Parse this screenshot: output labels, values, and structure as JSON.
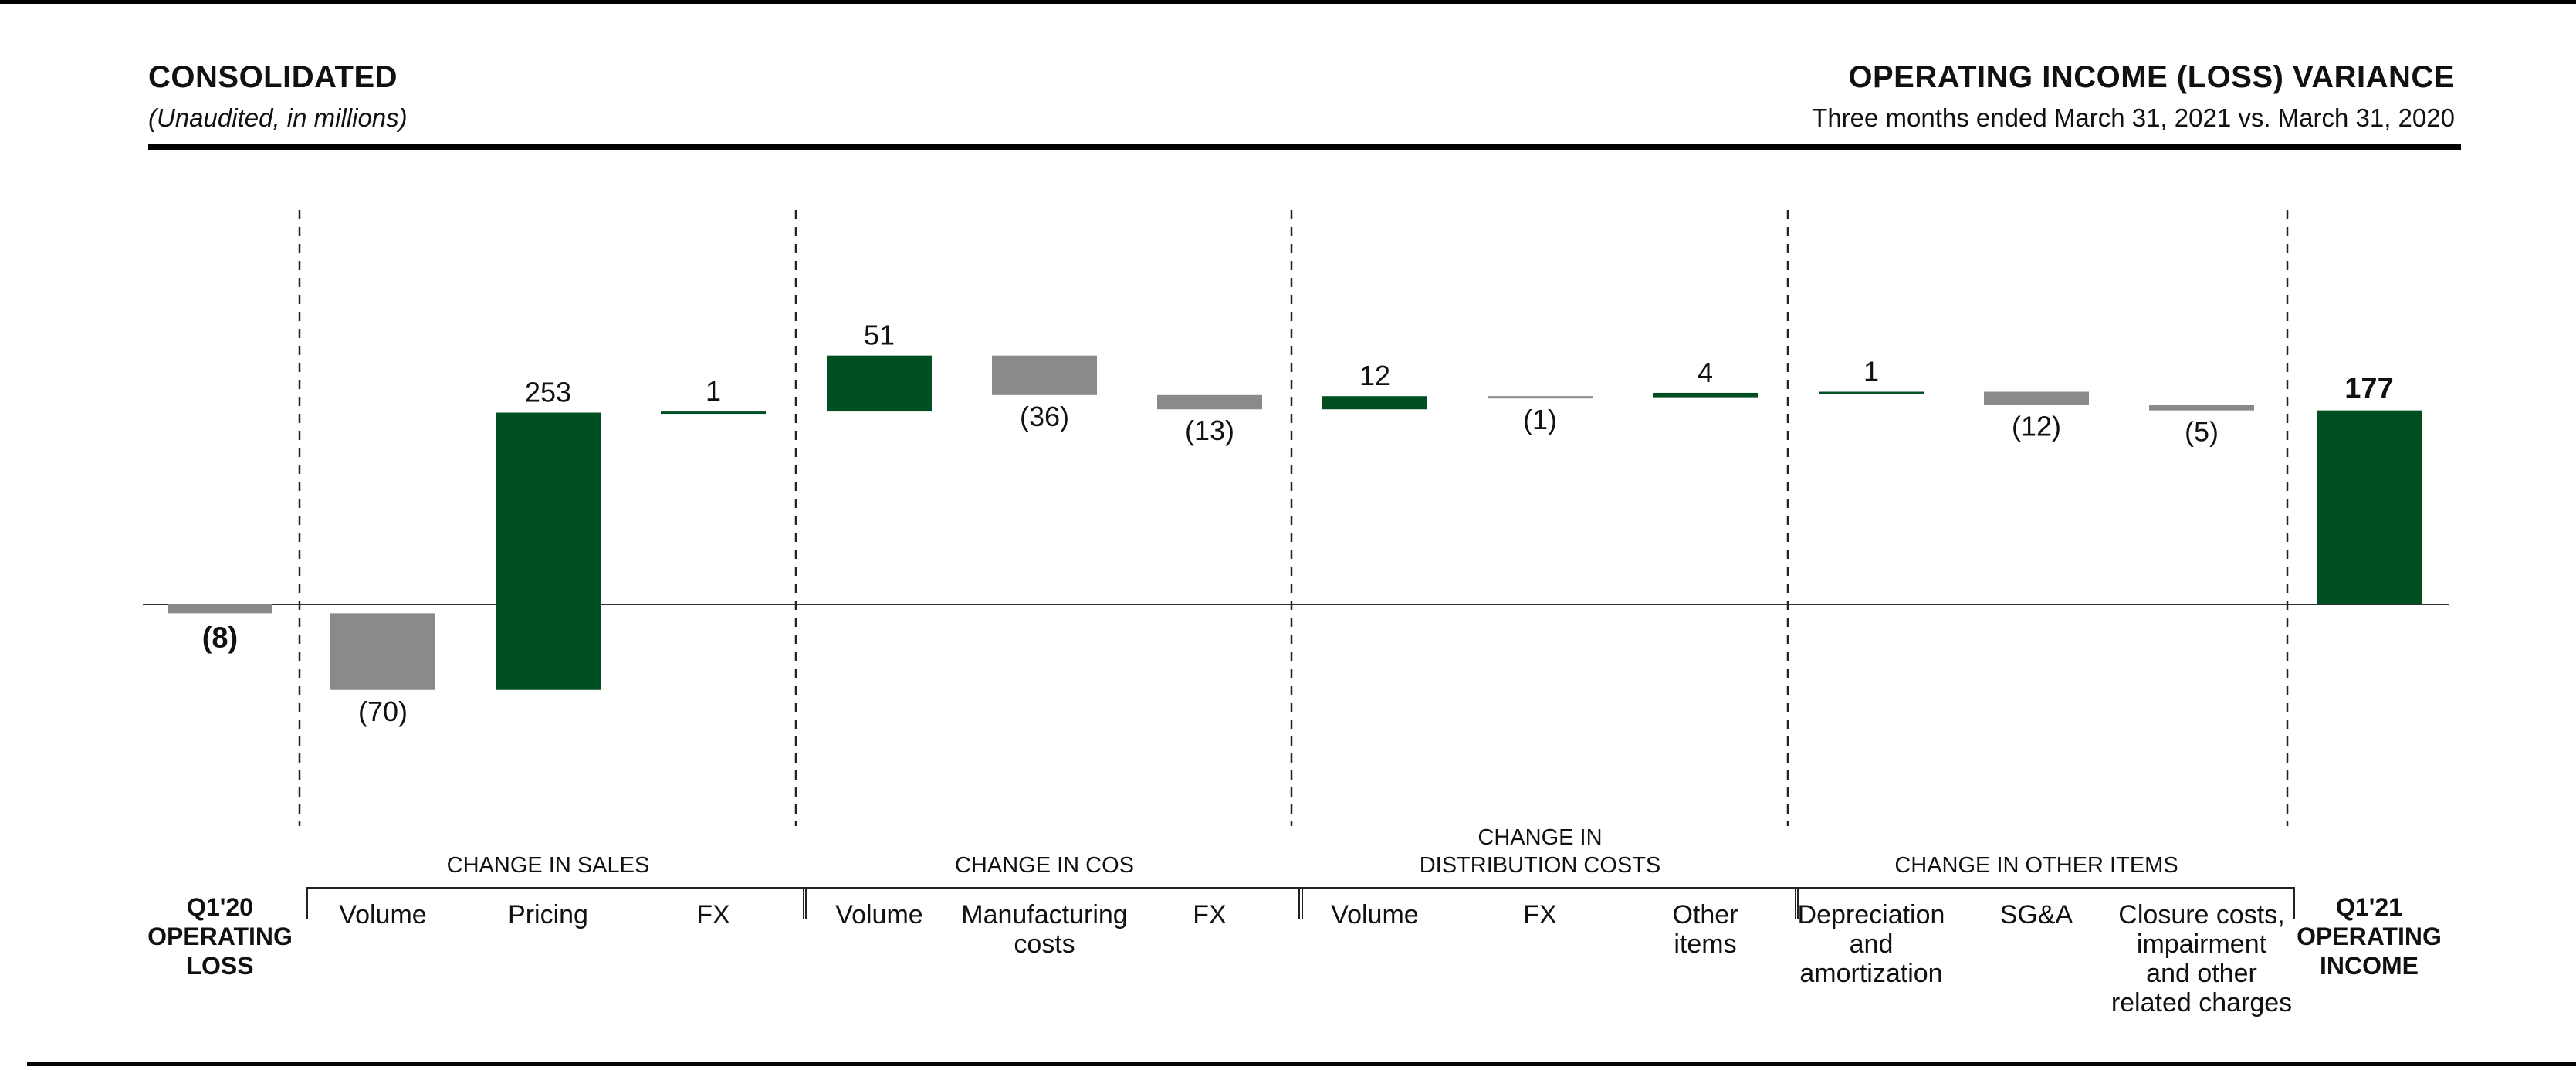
{
  "header": {
    "left_title": "CONSOLIDATED",
    "left_subtitle": "(Unaudited, in millions)",
    "right_title": "OPERATING INCOME (LOSS) VARIANCE",
    "right_subtitle": "Three months ended March 31, 2021 vs. March 31, 2020"
  },
  "colors": {
    "positive": "#004f22",
    "negative": "#8a8a8a",
    "axis": "#333333",
    "text": "#111111"
  },
  "chart_data": {
    "type": "bar",
    "subtype": "waterfall",
    "title": "OPERATING INCOME (LOSS) VARIANCE",
    "unit": "millions",
    "ylim": [
      -140,
      470
    ],
    "start": {
      "label": [
        "Q1'20",
        "OPERATING",
        "LOSS"
      ],
      "value": -8,
      "value_label": "(8)"
    },
    "end": {
      "label": [
        "Q1'21",
        "OPERATING",
        "INCOME"
      ],
      "value": 177,
      "value_label": "177"
    },
    "groups": [
      {
        "title": [
          "CHANGE IN SALES"
        ],
        "items": [
          {
            "label": [
              "Volume"
            ],
            "value": -70,
            "value_label": "(70)"
          },
          {
            "label": [
              "Pricing"
            ],
            "value": 253,
            "value_label": "253"
          },
          {
            "label": [
              "FX"
            ],
            "value": 1,
            "value_label": "1"
          }
        ]
      },
      {
        "title": [
          "CHANGE IN COS"
        ],
        "items": [
          {
            "label": [
              "Volume"
            ],
            "value": 51,
            "value_label": "51"
          },
          {
            "label": [
              "Manufacturing",
              "costs"
            ],
            "value": -36,
            "value_label": "(36)"
          },
          {
            "label": [
              "FX"
            ],
            "value": -13,
            "value_label": "(13)"
          }
        ]
      },
      {
        "title": [
          "CHANGE IN",
          "DISTRIBUTION COSTS"
        ],
        "items": [
          {
            "label": [
              "Volume"
            ],
            "value": 12,
            "value_label": "12"
          },
          {
            "label": [
              "FX"
            ],
            "value": -1,
            "value_label": "(1)"
          },
          {
            "label": [
              "Other",
              "items"
            ],
            "value": 4,
            "value_label": "4"
          }
        ]
      },
      {
        "title": [
          "CHANGE IN OTHER ITEMS"
        ],
        "items": [
          {
            "label": [
              "Depreciation",
              "and",
              "amortization"
            ],
            "value": 1,
            "value_label": "1"
          },
          {
            "label": [
              "SG&A"
            ],
            "value": -12,
            "value_label": "(12)"
          },
          {
            "label": [
              "Closure costs,",
              "impairment",
              "and other",
              "related charges"
            ],
            "value": -5,
            "value_label": "(5)"
          }
        ]
      }
    ]
  }
}
